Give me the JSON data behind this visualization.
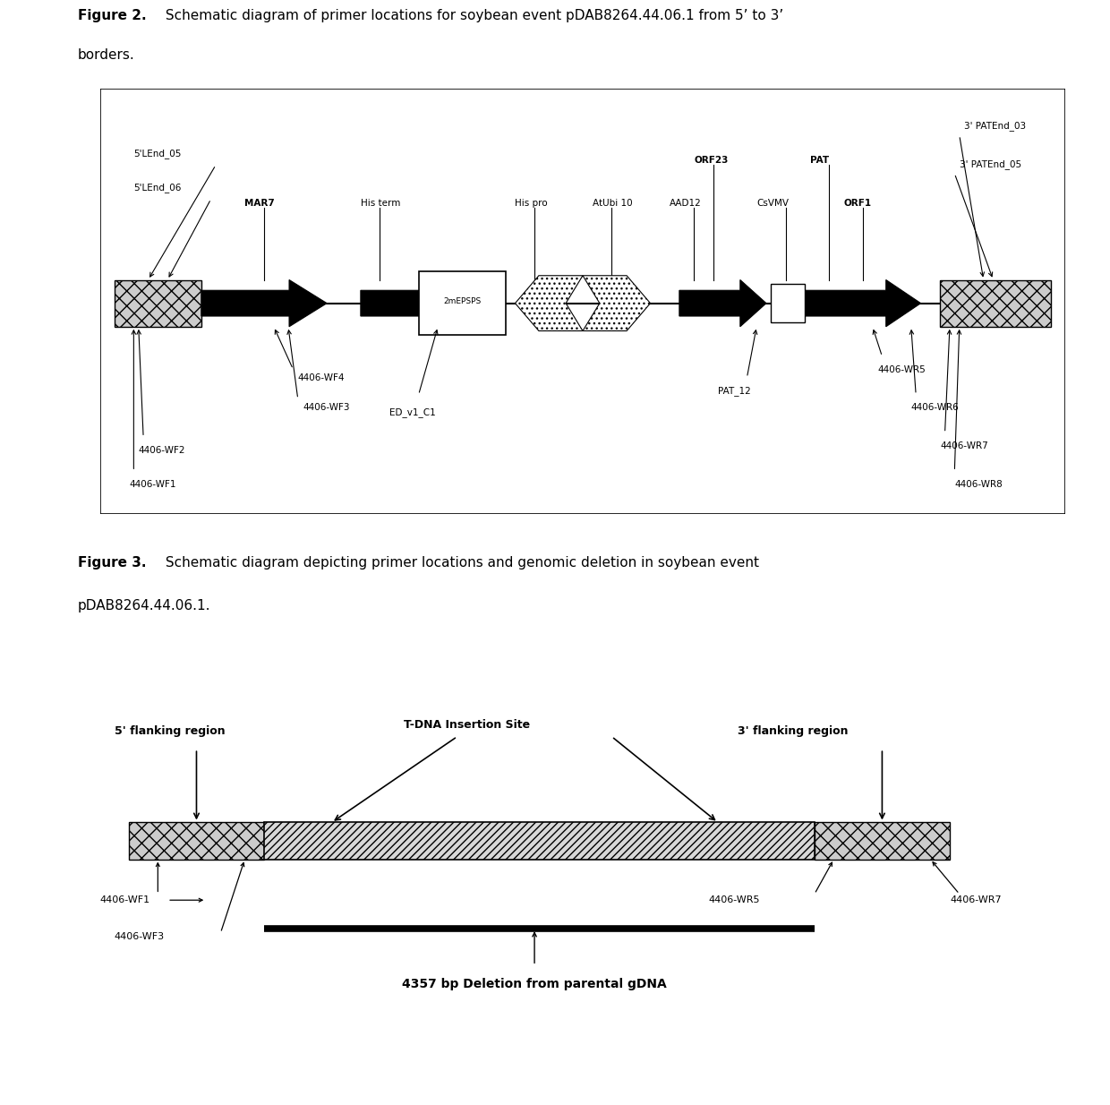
{
  "fig2_title_bold": "Figure 2.",
  "fig2_title_rest": "  Schematic diagram of primer locations for soybean event pDAB8264.44.06.1 from 5’ to 3’ borders.",
  "fig3_title_bold": "Figure 3.",
  "fig3_title_rest": "  Schematic diagram depicting primer locations and genomic deletion in soybean event pDAB8264.44.06.1.",
  "bg_color": "#ffffff",
  "label_fs2": 7.5,
  "label_fs3": 9.0
}
